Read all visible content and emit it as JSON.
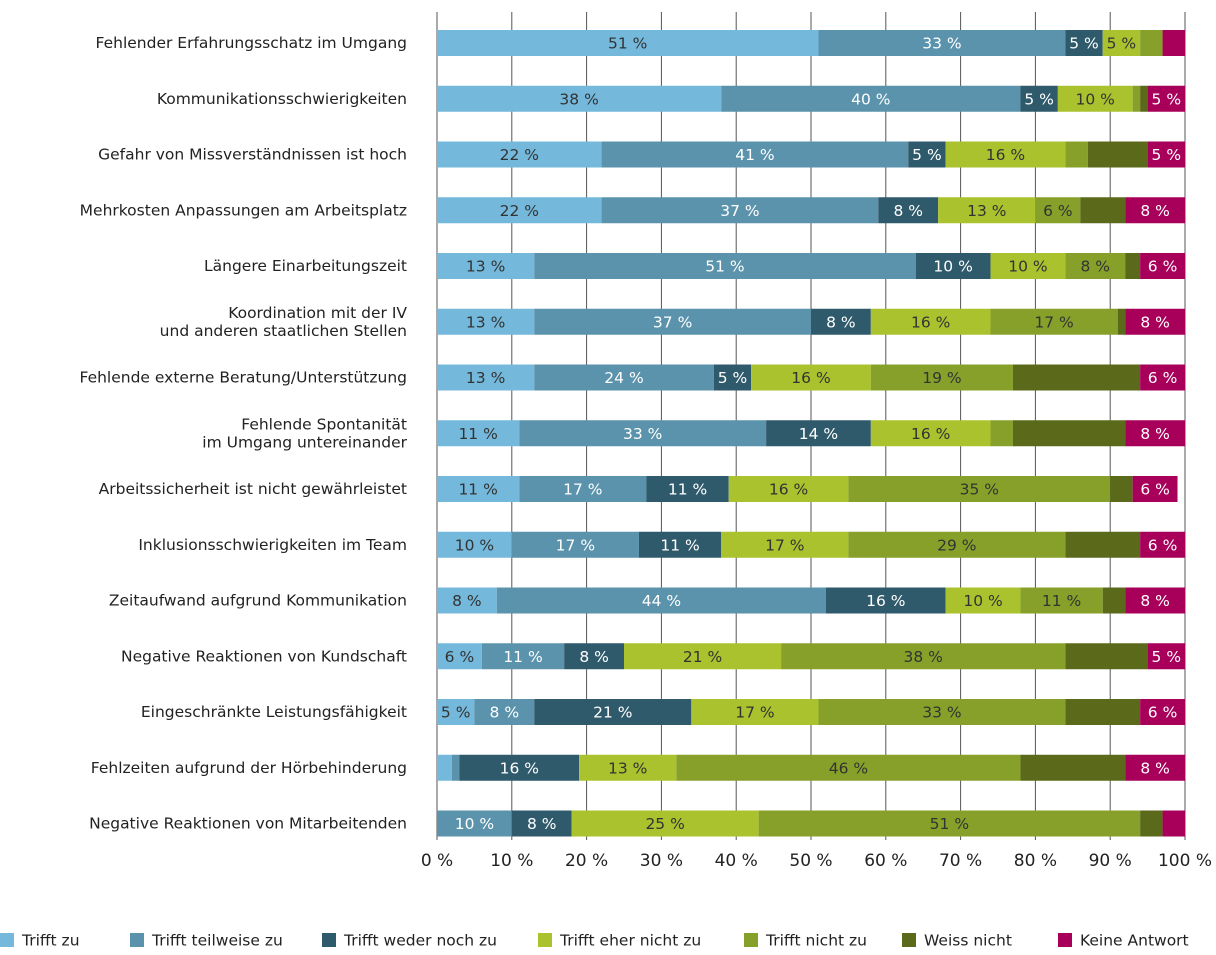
{
  "chart_data": {
    "type": "stacked_barh",
    "categories": [
      "Fehlender Erfahrungsschatz im Umgang",
      "Kommunikationsschwierigkeiten",
      "Gefahr von Missverständnissen ist hoch",
      "Mehrkosten Anpassungen am Arbeitsplatz",
      "Längere Einarbeitungszeit",
      "Koordination mit der IV\nund anderen staatlichen Stellen",
      "Fehlende externe Beratung/Unterstützung",
      "Fehlende Spontanität\nim Umgang untereinander",
      "Arbeitssicherheit ist nicht gewährleistet",
      "Inklusionsschwierigkeiten im Team",
      "Zeitaufwand aufgrund Kommunikation",
      "Negative Reaktionen von Kundschaft",
      "Eingeschränkte Leistungsfähigkeit",
      "Fehlzeiten aufgrund der Hörbehinderung",
      "Negative Reaktionen von Mitarbeitenden"
    ],
    "series": [
      {
        "name": "Trifft zu",
        "color": "#74b9dc",
        "values": [
          51,
          38,
          22,
          22,
          13,
          13,
          13,
          11,
          11,
          10,
          8,
          6,
          5,
          2,
          0
        ],
        "value_labels": [
          "51 %",
          "38 %",
          "22 %",
          "22 %",
          "13 %",
          "13 %",
          "13 %",
          "11 %",
          "11 %",
          "10 %",
          "8 %",
          "6 %",
          "5 %",
          null,
          null
        ]
      },
      {
        "name": "Trifft teilweise zu",
        "color": "#5a93ab",
        "values": [
          33,
          40,
          41,
          37,
          51,
          37,
          24,
          33,
          17,
          17,
          44,
          11,
          8,
          1,
          10
        ],
        "value_labels": [
          "33 %",
          "40 %",
          "41 %",
          "37 %",
          "51 %",
          "37 %",
          "24 %",
          "33 %",
          "17 %",
          "17 %",
          "44 %",
          "11 %",
          "8 %",
          null,
          "10 %"
        ]
      },
      {
        "name": "Trifft weder noch zu",
        "color": "#2f5a6b",
        "values": [
          5,
          5,
          5,
          8,
          10,
          8,
          5,
          14,
          11,
          11,
          16,
          8,
          21,
          16,
          8
        ],
        "value_labels": [
          "5 %",
          "5 %",
          "5 %",
          "8 %",
          "10 %",
          "8 %",
          "5 %",
          "14 %",
          "11 %",
          "11 %",
          "16 %",
          "8 %",
          "21 %",
          "16 %",
          "8 %"
        ]
      },
      {
        "name": "Trifft eher nicht zu",
        "color": "#a9c22d",
        "values": [
          5,
          10,
          16,
          13,
          10,
          16,
          16,
          16,
          16,
          17,
          10,
          21,
          17,
          13,
          25
        ],
        "value_labels": [
          "5 %",
          "10 %",
          "16 %",
          "13 %",
          "10 %",
          "16 %",
          "16 %",
          "16 %",
          "16 %",
          "17 %",
          "10 %",
          "21 %",
          "17 %",
          "13 %",
          "25 %"
        ]
      },
      {
        "name": "Trifft nicht zu",
        "color": "#87a02a",
        "values": [
          3,
          1,
          3,
          6,
          8,
          17,
          19,
          3,
          35,
          29,
          11,
          38,
          33,
          46,
          51
        ],
        "value_labels": [
          null,
          null,
          null,
          "6 %",
          "8 %",
          "17 %",
          "19 %",
          null,
          "35 %",
          "29 %",
          "11 %",
          "38 %",
          "33 %",
          "46 %",
          "51 %"
        ]
      },
      {
        "name": "Weiss nicht",
        "color": "#5b6a1a",
        "values": [
          0,
          1,
          8,
          6,
          2,
          1,
          17,
          15,
          3,
          10,
          3,
          11,
          10,
          14,
          3
        ],
        "value_labels": [
          null,
          null,
          null,
          null,
          null,
          null,
          null,
          null,
          null,
          null,
          null,
          null,
          null,
          null,
          null
        ]
      },
      {
        "name": "Keine Antwort",
        "color": "#a8005a",
        "values": [
          3,
          5,
          5,
          8,
          6,
          8,
          6,
          8,
          6,
          6,
          8,
          5,
          6,
          8,
          3
        ],
        "value_labels": [
          null,
          "5 %",
          "5 %",
          "8 %",
          "6 %",
          "8 %",
          "6 %",
          "8 %",
          "6 %",
          "6 %",
          "8 %",
          "5 %",
          "6 %",
          "8 %",
          null
        ]
      }
    ],
    "xlim": [
      0,
      100
    ],
    "xticks": [
      {
        "value": 0,
        "label": "0 %"
      },
      {
        "value": 10,
        "label": "10 %"
      },
      {
        "value": 20,
        "label": "20 %"
      },
      {
        "value": 30,
        "label": "30 %"
      },
      {
        "value": 40,
        "label": "40 %"
      },
      {
        "value": 50,
        "label": "50 %"
      },
      {
        "value": 60,
        "label": "60 %"
      },
      {
        "value": 70,
        "label": "70 %"
      },
      {
        "value": 80,
        "label": "80 %"
      },
      {
        "value": 90,
        "label": "90 %"
      },
      {
        "value": 100,
        "label": "100 %"
      }
    ],
    "grid": true,
    "legend": "bottom"
  }
}
